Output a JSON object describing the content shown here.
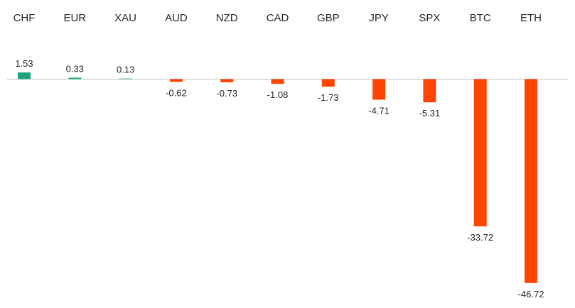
{
  "chart_data": {
    "type": "bar",
    "title": "",
    "xlabel": "",
    "ylabel": "",
    "categories": [
      "CHF",
      "EUR",
      "XAU",
      "AUD",
      "NZD",
      "CAD",
      "GBP",
      "JPY",
      "SPX",
      "BTC",
      "ETH"
    ],
    "values": [
      1.53,
      0.33,
      0.13,
      -0.62,
      -0.73,
      -1.08,
      -1.73,
      -4.71,
      -5.31,
      -33.72,
      -46.72
    ],
    "value_labels": [
      "1.53",
      "0.33",
      "0.13",
      "-0.62",
      "-0.73",
      "-1.08",
      "-1.73",
      "-4.71",
      "-5.31",
      "-33.72",
      "-46.72"
    ],
    "ylim": [
      -48,
      2
    ],
    "grid": false,
    "legend": "none",
    "category_axis_position": "top",
    "colors": {
      "positive": "#1fa37f",
      "negative": "#ff4500",
      "axis": "#bfbfbf",
      "text": "#262626"
    }
  }
}
